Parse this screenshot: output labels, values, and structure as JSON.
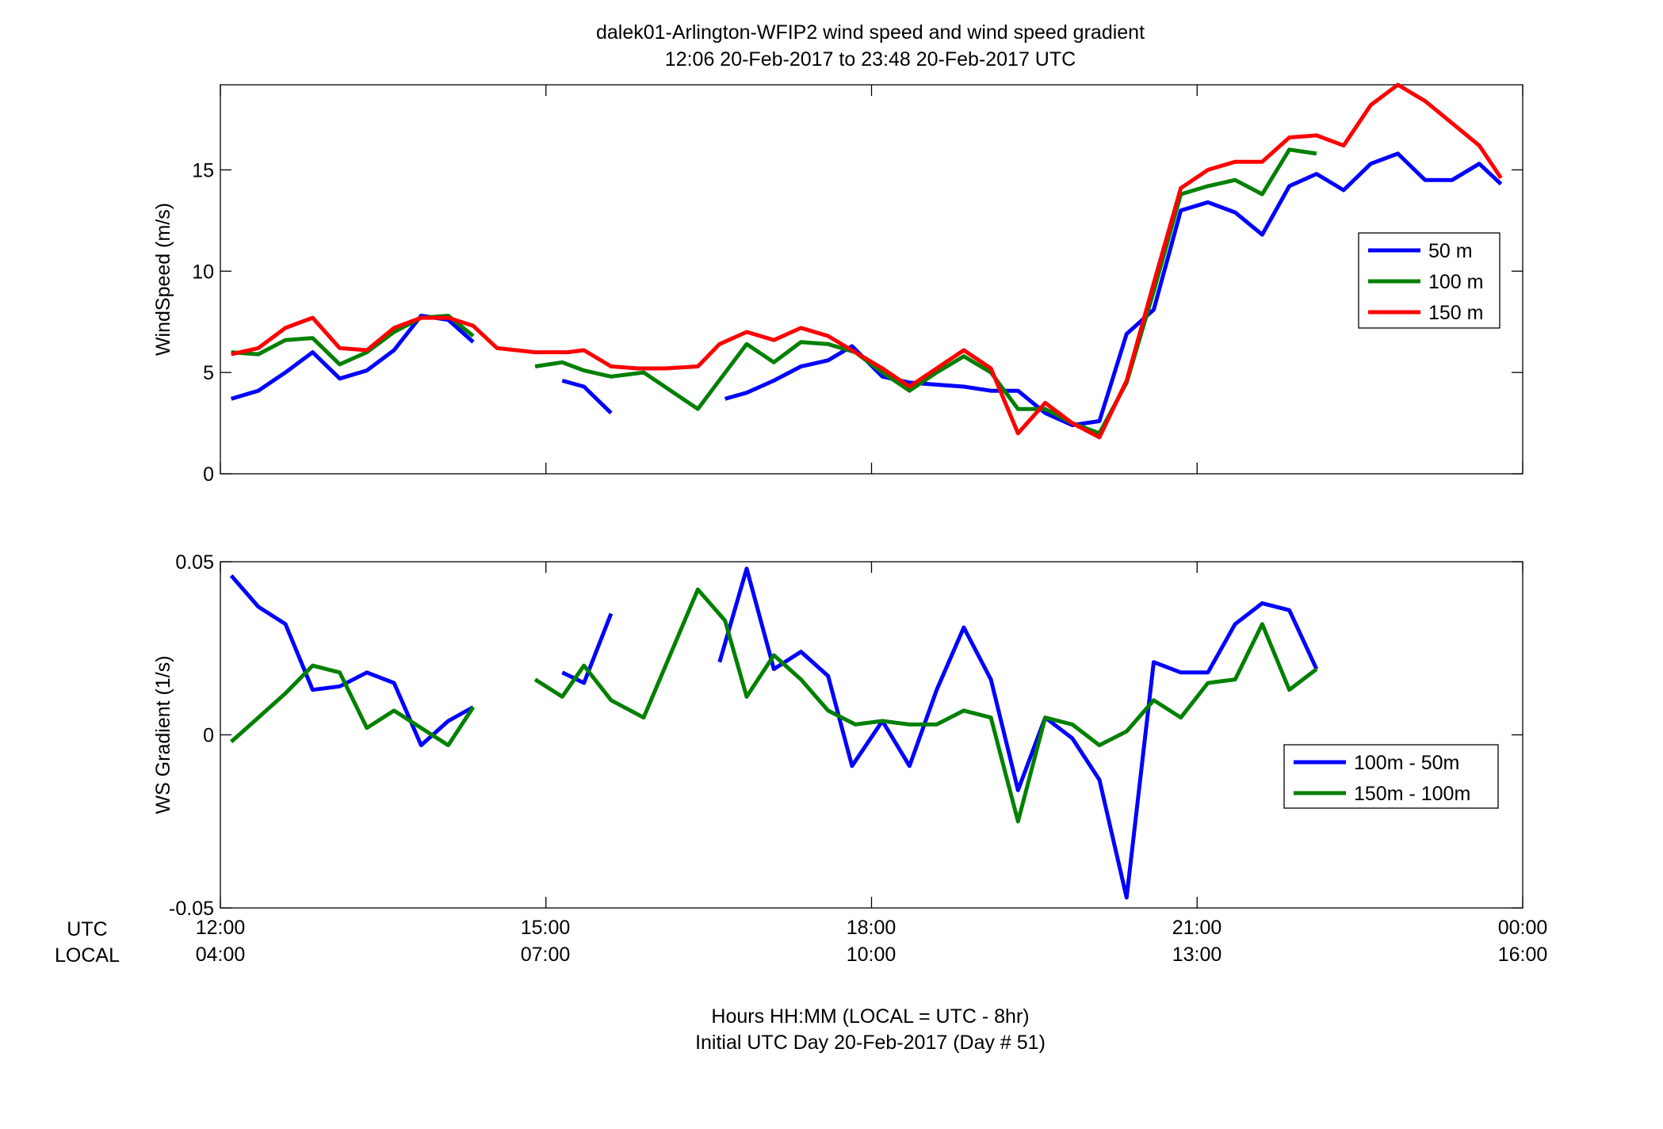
{
  "figure": {
    "title_line1": "dalek01-Arlington-WFIP2  wind speed and wind speed gradient",
    "title_line2": "12:06 20-Feb-2017 to 23:48 20-Feb-2017  UTC",
    "xlabel_line1": "Hours HH:MM  (LOCAL = UTC - 8hr)",
    "xlabel_line2": "Initial UTC Day 20-Feb-2017 (Day # 51)",
    "row_label_utc": "UTC",
    "row_label_local": "LOCAL",
    "x_ticks_utc": [
      "12:00",
      "15:00",
      "18:00",
      "21:00",
      "00:00"
    ],
    "x_ticks_local": [
      "04:00",
      "07:00",
      "10:00",
      "13:00",
      "16:00"
    ]
  },
  "chart_data": [
    {
      "type": "line",
      "ylabel": "WindSpeed (m/s)",
      "xlim": [
        12.0,
        24.0
      ],
      "ylim": [
        0,
        19.2
      ],
      "yticks": [
        0,
        5,
        10,
        15
      ],
      "ytick_labels": [
        "0",
        "5",
        "10",
        "15"
      ],
      "x_unit": "hours UTC",
      "grid": false,
      "legend_position": "right",
      "series": [
        {
          "name": "50 m",
          "color": "#0000ff",
          "points": [
            [
              12.1,
              3.7
            ],
            [
              12.35,
              4.1
            ],
            [
              12.6,
              5.0
            ],
            [
              12.85,
              6.0
            ],
            [
              13.1,
              4.7
            ],
            [
              13.35,
              5.1
            ],
            [
              13.6,
              6.1
            ],
            [
              13.85,
              7.8
            ],
            [
              14.1,
              7.6
            ],
            [
              14.33,
              6.5
            ],
            null,
            [
              15.15,
              4.6
            ],
            [
              15.35,
              4.3
            ],
            [
              15.6,
              3.0
            ],
            null,
            [
              16.65,
              3.7
            ],
            [
              16.85,
              4.0
            ],
            [
              17.1,
              4.6
            ],
            [
              17.35,
              5.3
            ],
            [
              17.6,
              5.6
            ],
            [
              17.82,
              6.3
            ],
            [
              18.1,
              4.8
            ],
            [
              18.35,
              4.5
            ],
            [
              18.6,
              4.4
            ],
            [
              18.85,
              4.3
            ],
            [
              19.1,
              4.1
            ],
            [
              19.35,
              4.1
            ],
            [
              19.6,
              3.0
            ],
            [
              19.85,
              2.4
            ],
            [
              20.1,
              2.6
            ],
            [
              20.35,
              6.9
            ],
            [
              20.6,
              8.1
            ],
            [
              20.85,
              13.0
            ],
            [
              21.1,
              13.4
            ],
            [
              21.35,
              12.9
            ],
            [
              21.6,
              11.8
            ],
            [
              21.85,
              14.2
            ],
            [
              22.1,
              14.8
            ],
            [
              22.35,
              14.0
            ],
            [
              22.6,
              15.3
            ],
            [
              22.85,
              15.8
            ],
            [
              23.1,
              14.5
            ],
            [
              23.35,
              14.5
            ],
            [
              23.6,
              15.3
            ],
            [
              23.8,
              14.3
            ]
          ]
        },
        {
          "name": "100 m",
          "color": "#008000",
          "points": [
            [
              12.1,
              6.0
            ],
            [
              12.35,
              5.9
            ],
            [
              12.6,
              6.6
            ],
            [
              12.85,
              6.7
            ],
            [
              13.1,
              5.4
            ],
            [
              13.35,
              6.0
            ],
            [
              13.6,
              7.0
            ],
            [
              13.85,
              7.7
            ],
            [
              14.1,
              7.8
            ],
            [
              14.33,
              6.8
            ],
            null,
            [
              14.9,
              5.3
            ],
            [
              15.15,
              5.5
            ],
            [
              15.35,
              5.1
            ],
            [
              15.6,
              4.8
            ],
            [
              15.9,
              5.0
            ],
            [
              16.4,
              3.2
            ],
            [
              16.85,
              6.4
            ],
            [
              17.1,
              5.5
            ],
            [
              17.35,
              6.5
            ],
            [
              17.6,
              6.4
            ],
            [
              17.85,
              6.0
            ],
            [
              18.1,
              5.0
            ],
            [
              18.35,
              4.1
            ],
            [
              18.6,
              5.0
            ],
            [
              18.85,
              5.8
            ],
            [
              19.1,
              5.0
            ],
            [
              19.35,
              3.2
            ],
            [
              19.6,
              3.2
            ],
            [
              19.85,
              2.5
            ],
            [
              20.1,
              2.0
            ],
            [
              20.35,
              4.5
            ],
            [
              20.6,
              9.0
            ],
            [
              20.85,
              13.8
            ],
            [
              21.1,
              14.2
            ],
            [
              21.35,
              14.5
            ],
            [
              21.6,
              13.8
            ],
            [
              21.85,
              16.0
            ],
            [
              22.1,
              15.8
            ]
          ]
        },
        {
          "name": "150 m",
          "color": "#ff0000",
          "points": [
            [
              12.1,
              5.9
            ],
            [
              12.35,
              6.2
            ],
            [
              12.6,
              7.2
            ],
            [
              12.85,
              7.7
            ],
            [
              13.1,
              6.2
            ],
            [
              13.35,
              6.1
            ],
            [
              13.6,
              7.2
            ],
            [
              13.85,
              7.7
            ],
            [
              14.1,
              7.7
            ],
            [
              14.33,
              7.3
            ],
            [
              14.55,
              6.2
            ],
            [
              14.9,
              6.0
            ],
            [
              15.2,
              6.0
            ],
            [
              15.35,
              6.1
            ],
            [
              15.6,
              5.3
            ],
            [
              15.85,
              5.2
            ],
            [
              16.1,
              5.2
            ],
            [
              16.4,
              5.3
            ],
            [
              16.6,
              6.4
            ],
            [
              16.85,
              7.0
            ],
            [
              17.1,
              6.6
            ],
            [
              17.35,
              7.2
            ],
            [
              17.6,
              6.8
            ],
            [
              17.85,
              6.0
            ],
            [
              18.1,
              5.2
            ],
            [
              18.35,
              4.3
            ],
            [
              18.6,
              5.2
            ],
            [
              18.85,
              6.1
            ],
            [
              19.1,
              5.2
            ],
            [
              19.35,
              2.0
            ],
            [
              19.6,
              3.5
            ],
            [
              19.85,
              2.5
            ],
            [
              20.1,
              1.8
            ],
            [
              20.35,
              4.6
            ],
            [
              20.6,
              9.4
            ],
            [
              20.85,
              14.1
            ],
            [
              21.1,
              15.0
            ],
            [
              21.35,
              15.4
            ],
            [
              21.6,
              15.4
            ],
            [
              21.85,
              16.6
            ],
            [
              22.1,
              16.7
            ],
            [
              22.35,
              16.2
            ],
            [
              22.6,
              18.2
            ],
            [
              22.85,
              19.2
            ],
            [
              23.1,
              18.4
            ],
            [
              23.35,
              17.3
            ],
            [
              23.6,
              16.2
            ],
            [
              23.8,
              14.6
            ]
          ]
        }
      ]
    },
    {
      "type": "line",
      "ylabel": "WS Gradient (1/s)",
      "xlim": [
        12.0,
        24.0
      ],
      "ylim": [
        -0.05,
        0.05
      ],
      "yticks": [
        -0.05,
        0,
        0.05
      ],
      "ytick_labels": [
        "-0.05",
        "0",
        "0.05"
      ],
      "x_unit": "hours UTC",
      "grid": false,
      "legend_position": "right",
      "series": [
        {
          "name": "100m - 50m",
          "color": "#0000ff",
          "points": [
            [
              12.1,
              0.046
            ],
            [
              12.35,
              0.037
            ],
            [
              12.6,
              0.032
            ],
            [
              12.85,
              0.013
            ],
            [
              13.1,
              0.014
            ],
            [
              13.35,
              0.018
            ],
            [
              13.6,
              0.015
            ],
            [
              13.85,
              -0.003
            ],
            [
              14.1,
              0.004
            ],
            [
              14.33,
              0.008
            ],
            null,
            [
              15.15,
              0.018
            ],
            [
              15.35,
              0.015
            ],
            [
              15.6,
              0.035
            ],
            null,
            [
              16.6,
              0.021
            ],
            [
              16.85,
              0.048
            ],
            [
              17.1,
              0.019
            ],
            [
              17.35,
              0.024
            ],
            [
              17.6,
              0.017
            ],
            [
              17.82,
              -0.009
            ],
            [
              18.1,
              0.004
            ],
            [
              18.35,
              -0.009
            ],
            [
              18.6,
              0.013
            ],
            [
              18.85,
              0.031
            ],
            [
              19.1,
              0.016
            ],
            [
              19.35,
              -0.016
            ],
            [
              19.6,
              0.005
            ],
            [
              19.85,
              -0.001
            ],
            [
              20.1,
              -0.013
            ],
            [
              20.35,
              -0.047
            ],
            [
              20.6,
              0.021
            ],
            [
              20.85,
              0.018
            ],
            [
              21.1,
              0.018
            ],
            [
              21.35,
              0.032
            ],
            [
              21.6,
              0.038
            ],
            [
              21.85,
              0.036
            ],
            [
              22.1,
              0.019
            ]
          ]
        },
        {
          "name": "150m - 100m",
          "color": "#008000",
          "points": [
            [
              12.1,
              -0.002
            ],
            [
              12.35,
              0.005
            ],
            [
              12.6,
              0.012
            ],
            [
              12.85,
              0.02
            ],
            [
              13.1,
              0.018
            ],
            [
              13.35,
              0.002
            ],
            [
              13.6,
              0.007
            ],
            [
              13.85,
              0.002
            ],
            [
              14.1,
              -0.003
            ],
            [
              14.33,
              0.008
            ],
            null,
            [
              14.9,
              0.016
            ],
            [
              15.15,
              0.011
            ],
            [
              15.35,
              0.02
            ],
            [
              15.6,
              0.01
            ],
            [
              15.9,
              0.005
            ],
            [
              16.4,
              0.042
            ],
            [
              16.65,
              0.033
            ],
            [
              16.85,
              0.011
            ],
            [
              17.1,
              0.023
            ],
            [
              17.35,
              0.016
            ],
            [
              17.6,
              0.007
            ],
            [
              17.85,
              0.003
            ],
            [
              18.1,
              0.004
            ],
            [
              18.35,
              0.003
            ],
            [
              18.6,
              0.003
            ],
            [
              18.85,
              0.007
            ],
            [
              19.1,
              0.005
            ],
            [
              19.35,
              -0.025
            ],
            [
              19.6,
              0.005
            ],
            [
              19.85,
              0.003
            ],
            [
              20.1,
              -0.003
            ],
            [
              20.35,
              0.001
            ],
            [
              20.6,
              0.01
            ],
            [
              20.85,
              0.005
            ],
            [
              21.1,
              0.015
            ],
            [
              21.35,
              0.016
            ],
            [
              21.6,
              0.032
            ],
            [
              21.85,
              0.013
            ],
            [
              22.1,
              0.019
            ]
          ]
        }
      ]
    }
  ]
}
